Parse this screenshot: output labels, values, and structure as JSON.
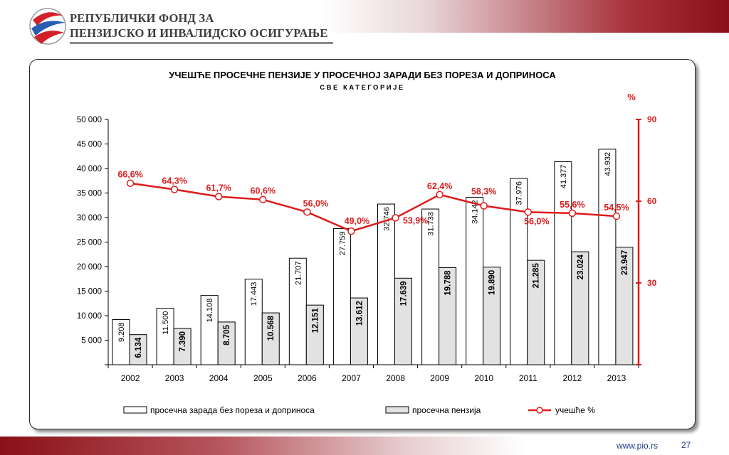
{
  "header": {
    "org_line1": "РЕПУБЛИЧКИ ФОНД ЗА",
    "org_line2": "ПЕНЗИЈСКО И ИНВАЛИДСКО ОСИГУРАЊЕ"
  },
  "footer": {
    "url": "www.pio.rs",
    "page_number": "27"
  },
  "chart_data": {
    "type": "bar",
    "title": "УЧЕШЋЕ ПРОСЕЧНЕ ПЕНЗИЈЕ У ПРОСЕЧНОЈ ЗАРАДИ БЕЗ ПОРЕЗА И ДОПРИНОСА",
    "subtitle": "СВЕ КАТЕГОРИЈЕ",
    "categories": [
      "2002",
      "2003",
      "2004",
      "2005",
      "2006",
      "2007",
      "2008",
      "2009",
      "2010",
      "2011",
      "2012",
      "2013"
    ],
    "ylim": [
      0,
      50000
    ],
    "y_ticks": [
      "50 000",
      "45 000",
      "40 000",
      "35 000",
      "30 000",
      "25 000",
      "20 000",
      "15 000",
      "10 000",
      "5 000"
    ],
    "y2_label": "%",
    "y2lim": [
      0,
      90
    ],
    "y2_ticks": [
      "90",
      "60",
      "30"
    ],
    "legend_position": "bottom",
    "grid": false,
    "colors": {
      "wage_fill": "#ffffff",
      "pension_fill": "#e2e2e2",
      "bar_stroke": "#000000",
      "line": "#dd1c1c",
      "secondary_axis": "#dd1c1c"
    },
    "series": [
      {
        "name": "просечна зарада без пореза и доприноса",
        "type": "bar",
        "axis": "left",
        "values": [
          9208,
          11500,
          14108,
          17443,
          21707,
          27759,
          32746,
          31733,
          34142,
          37976,
          41377,
          43932
        ],
        "labels": [
          "9.208",
          "11.500",
          "14.108",
          "17.443",
          "21.707",
          "27.759",
          "32.746",
          "31.733",
          "34.142",
          "37.976",
          "41.377",
          "43.932"
        ]
      },
      {
        "name": "просечна пензија",
        "type": "bar",
        "axis": "left",
        "values": [
          6134,
          7390,
          8705,
          10568,
          12151,
          13612,
          17639,
          19788,
          19890,
          21285,
          23024,
          23947
        ],
        "labels": [
          "6.134",
          "7.390",
          "8.705",
          "10.568",
          "12.151",
          "13.612",
          "17.639",
          "19.788",
          "19.890",
          "21.285",
          "23.024",
          "23.947"
        ]
      },
      {
        "name": "учешће %",
        "type": "line",
        "axis": "right",
        "values": [
          66.6,
          64.3,
          61.7,
          60.6,
          56.0,
          49.0,
          53.9,
          62.4,
          58.3,
          56.0,
          55.6,
          54.5
        ],
        "labels": [
          "66,6%",
          "64,3%",
          "61,7%",
          "60,6%",
          "56,0%",
          "49,0%",
          "53,9%",
          "62,4%",
          "58,3%",
          "56,0%",
          "55,6%",
          "54,5%"
        ]
      }
    ]
  }
}
